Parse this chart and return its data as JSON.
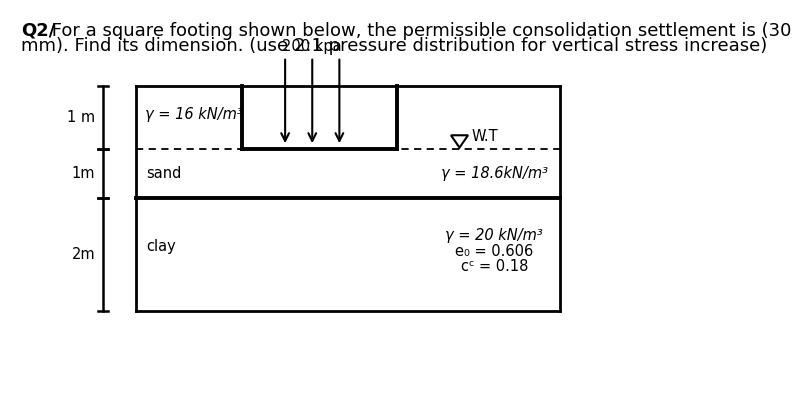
{
  "title_bold": "Q2/",
  "title_rest_line1": " For a square footing shown below, the permissible consolidation settlement is (30",
  "title_line2": "mm). Find its dimension. (use 2:1 pressure distribution for vertical stress increase)",
  "load_label": "200 kpa",
  "gamma_sand_top": "γ = 16 kN/m³",
  "gamma_sand_below": "γ = 18.6kN/m³",
  "gamma_clay": "γ = 20 kN/m³",
  "e0_label": "e₀ = 0.606",
  "cc_label": "cᶜ = 0.18",
  "wt_label": "W.T",
  "sand_label": "sand",
  "clay_label": "clay",
  "label_1m_top": "1 m",
  "label_1m_mid": "1m",
  "label_2m": "2m",
  "bg_color": "#ffffff",
  "box_color": "#000000",
  "fontsize_title": 13,
  "fontsize_body": 10.5
}
